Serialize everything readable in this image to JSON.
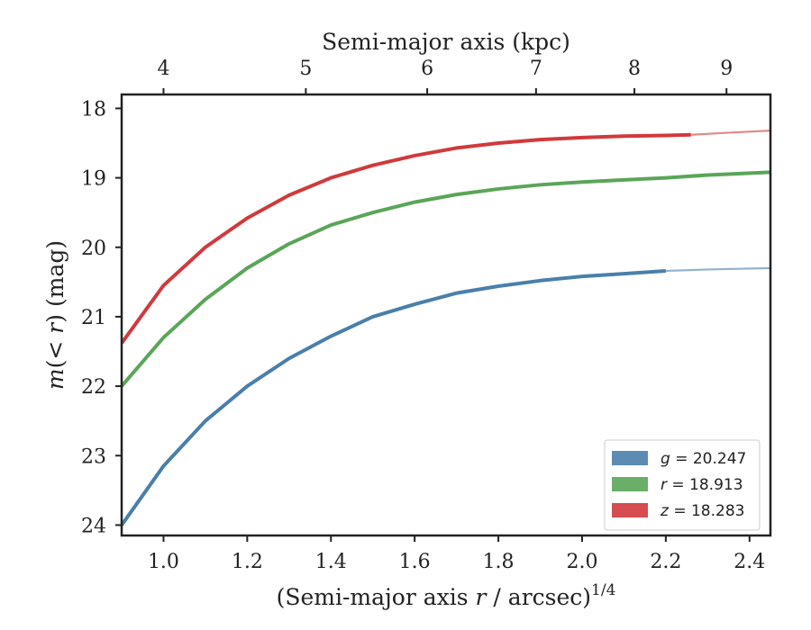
{
  "chart_data": {
    "type": "line",
    "xlabel": "(Semi-major axis r / arcsec)",
    "xlabel_parts": {
      "pre": "(Semi-major axis ",
      "var": "r",
      "post": " / arcsec)",
      "exponent": "1/4"
    },
    "ylabel": "m(< r) (mag)",
    "ylabel_parts": {
      "var": "m",
      "open": "(",
      "rel": "< ",
      "var2": "r",
      "close": ")",
      "unit": " (mag)"
    },
    "top_xlabel": "Semi-major axis (kpc)",
    "xlim": [
      0.9,
      2.45
    ],
    "ylim": [
      24.15,
      17.8
    ],
    "y_inverted": true,
    "x_ticks": [
      1.0,
      1.2,
      1.4,
      1.6,
      1.8,
      2.0,
      2.2,
      2.4
    ],
    "x_tick_labels": [
      "1.0",
      "1.2",
      "1.4",
      "1.6",
      "1.8",
      "2.0",
      "2.2",
      "2.4"
    ],
    "y_ticks": [
      18,
      19,
      20,
      21,
      22,
      23,
      24
    ],
    "y_tick_labels": [
      "18",
      "19",
      "20",
      "21",
      "22",
      "23",
      "24"
    ],
    "top_ticks_kpc": [
      4,
      5,
      6,
      7,
      8,
      9
    ],
    "top_tick_labels": [
      "4",
      "5",
      "6",
      "7",
      "8",
      "9"
    ],
    "top_tick_positions_x": [
      1.0,
      1.34,
      1.63,
      1.89,
      2.125,
      2.345
    ],
    "grid": false,
    "legend_placement": "lower-right",
    "series": [
      {
        "name": "g = 20.247",
        "label_var": "g",
        "label_rest": " = 20.247",
        "color": "#4a7fab",
        "x": [
          0.9,
          1.0,
          1.1,
          1.2,
          1.3,
          1.4,
          1.5,
          1.6,
          1.7,
          1.8,
          1.9,
          2.0,
          2.1,
          2.2
        ],
        "y": [
          24.0,
          23.15,
          22.5,
          22.0,
          21.6,
          21.28,
          21.0,
          20.82,
          20.66,
          20.56,
          20.48,
          20.42,
          20.38,
          20.34
        ],
        "ext_x": [
          2.2,
          2.3,
          2.45
        ],
        "ext_y": [
          20.34,
          20.32,
          20.3
        ]
      },
      {
        "name": "r = 18.913",
        "label_var": "r",
        "label_rest": " = 18.913",
        "color": "#5aa558",
        "x": [
          0.9,
          1.0,
          1.1,
          1.2,
          1.3,
          1.4,
          1.5,
          1.6,
          1.7,
          1.8,
          1.9,
          2.0,
          2.1,
          2.2,
          2.3,
          2.45
        ],
        "y": [
          22.0,
          21.3,
          20.75,
          20.3,
          19.95,
          19.68,
          19.5,
          19.35,
          19.24,
          19.16,
          19.1,
          19.06,
          19.03,
          19.0,
          18.96,
          18.92
        ]
      },
      {
        "name": "z = 18.283",
        "label_var": "z",
        "label_rest": " = 18.283",
        "color": "#d03a3c",
        "x": [
          0.9,
          1.0,
          1.1,
          1.2,
          1.3,
          1.4,
          1.5,
          1.6,
          1.7,
          1.8,
          1.9,
          2.0,
          2.1,
          2.2,
          2.26
        ],
        "y": [
          21.38,
          20.55,
          20.0,
          19.58,
          19.25,
          19.0,
          18.82,
          18.68,
          18.57,
          18.5,
          18.45,
          18.42,
          18.4,
          18.39,
          18.38
        ],
        "ext_x": [
          2.26,
          2.35,
          2.45
        ],
        "ext_y": [
          18.38,
          18.35,
          18.32
        ]
      }
    ]
  }
}
